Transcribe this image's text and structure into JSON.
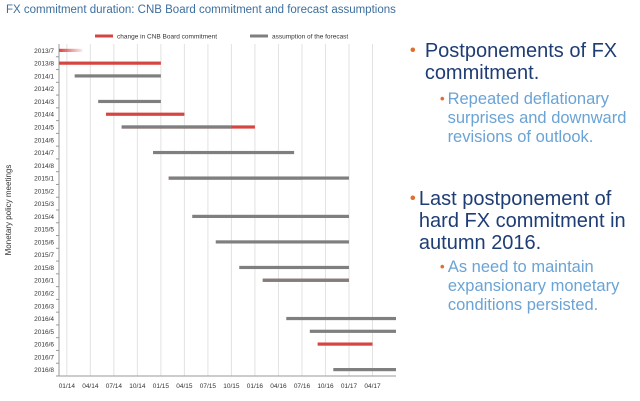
{
  "chart_data": {
    "type": "gantt",
    "title": "FX commitment duration: CNB Board commitment and forecast assumptions",
    "ylabel": "Monetary policy meetings",
    "legend": [
      {
        "key": "commitment",
        "label": "change in CNB Board commitment",
        "color": "#d64541"
      },
      {
        "key": "forecast",
        "label": "assumption of the forecast",
        "color": "#7f7f7f"
      }
    ],
    "legend_position": "top",
    "x_ticks": [
      "01/14",
      "04/14",
      "07/14",
      "10/14",
      "01/15",
      "04/15",
      "07/15",
      "10/15",
      "01/16",
      "04/16",
      "07/16",
      "10/16",
      "01/17",
      "04/17"
    ],
    "x_range": [
      "2013-12",
      "2017-07"
    ],
    "meetings": [
      "2013/7",
      "2013/8",
      "2014/1",
      "2014/2",
      "2014/3",
      "2014/4",
      "2014/5",
      "2014/6",
      "2014/7",
      "2014/8",
      "2015/1",
      "2015/2",
      "2015/3",
      "2015/4",
      "2015/5",
      "2015/6",
      "2015/7",
      "2015/8",
      "2016/1",
      "2016/2",
      "2016/3",
      "2016/4",
      "2016/5",
      "2016/6",
      "2016/7",
      "2016/8"
    ],
    "bars": [
      {
        "meeting": "2013/7",
        "series": "commitment",
        "start": "2013-12",
        "end": "2014-03",
        "fade": true
      },
      {
        "meeting": "2013/8",
        "series": "commitment",
        "start": "2013-12",
        "end": "2015-01"
      },
      {
        "meeting": "2014/1",
        "series": "forecast",
        "start": "2014-02",
        "end": "2015-01"
      },
      {
        "meeting": "2014/3",
        "series": "forecast",
        "start": "2014-05",
        "end": "2015-01"
      },
      {
        "meeting": "2014/4",
        "series": "commitment",
        "start": "2014-06",
        "end": "2015-04"
      },
      {
        "meeting": "2014/5",
        "series": "commitment",
        "start": "2014-08",
        "end": "2016-01"
      },
      {
        "meeting": "2014/5",
        "series": "forecast",
        "start": "2014-08",
        "end": "2015-10"
      },
      {
        "meeting": "2014/7",
        "series": "forecast",
        "start": "2014-12",
        "end": "2016-06"
      },
      {
        "meeting": "2015/1",
        "series": "commitment",
        "start": "2015-02",
        "end": "2016-07"
      },
      {
        "meeting": "2015/1",
        "series": "forecast",
        "start": "2015-02",
        "end": "2017-01"
      },
      {
        "meeting": "2015/4",
        "series": "forecast",
        "start": "2015-05",
        "end": "2017-01"
      },
      {
        "meeting": "2015/6",
        "series": "forecast",
        "start": "2015-08",
        "end": "2017-01"
      },
      {
        "meeting": "2015/8",
        "series": "forecast",
        "start": "2015-11",
        "end": "2017-01"
      },
      {
        "meeting": "2016/1",
        "series": "commitment",
        "start": "2016-02",
        "end": "2017-01"
      },
      {
        "meeting": "2016/1",
        "series": "forecast",
        "start": "2016-02",
        "end": "2017-01"
      },
      {
        "meeting": "2016/4",
        "series": "forecast",
        "start": "2016-05",
        "end": "2017-07"
      },
      {
        "meeting": "2016/5",
        "series": "forecast",
        "start": "2016-08",
        "end": "2017-07"
      },
      {
        "meeting": "2016/6",
        "series": "commitment",
        "start": "2016-09",
        "end": "2017-04"
      },
      {
        "meeting": "2016/8",
        "series": "forecast",
        "start": "2016-11",
        "end": "2017-07"
      }
    ]
  },
  "bullets": [
    {
      "level": 1,
      "text": "Postponements of FX commitment."
    },
    {
      "level": 2,
      "text": "Repeated deflationary surprises and downward revisions of outlook."
    },
    {
      "level": 1,
      "text": "Last postponement of hard FX commitment in autumn 2016."
    },
    {
      "level": 2,
      "text": "As need to maintain expansionary monetary conditions persisted."
    }
  ],
  "colors": {
    "title": "#3d6f9e",
    "commitment": "#d64541",
    "forecast": "#7f7f7f",
    "bullet_main": "#1f3d75",
    "bullet_sub": "#6aa3d5",
    "bullet_marker": "#e36c2f"
  }
}
